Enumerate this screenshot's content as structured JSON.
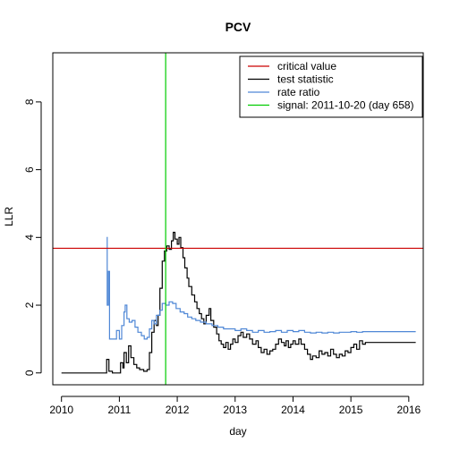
{
  "chart_data": {
    "type": "line",
    "title": "PCV",
    "xlabel": "day",
    "ylabel": "LLR",
    "xlim": [
      2009.85,
      2016.25
    ],
    "ylim": [
      -0.35,
      9.45
    ],
    "x_ticks": [
      2010,
      2011,
      2012,
      2013,
      2014,
      2015,
      2016
    ],
    "x_tick_labels": [
      "2010",
      "2011",
      "2012",
      "2013",
      "2014",
      "2015",
      "2016"
    ],
    "y_ticks": [
      0,
      2,
      4,
      6,
      8
    ],
    "y_tick_labels": [
      "0",
      "2",
      "4",
      "6",
      "8"
    ],
    "legend_position": "top-right",
    "legend": [
      {
        "label": "critical value",
        "color": "#cc0000"
      },
      {
        "label": "test statistic",
        "color": "#000000"
      },
      {
        "label": "rate ratio",
        "color": "#4f87d6"
      },
      {
        "label": "signal: 2011-10-20 (day 658)",
        "color": "#00cc00"
      }
    ],
    "critical_value": 3.68,
    "signal_x": 2011.8,
    "series": [
      {
        "name": "test statistic",
        "color": "#000000",
        "step": true,
        "points": [
          [
            2010.0,
            0
          ],
          [
            2010.77,
            0
          ],
          [
            2010.78,
            0.4
          ],
          [
            2010.82,
            0.05
          ],
          [
            2010.88,
            0
          ],
          [
            2011.02,
            0.3
          ],
          [
            2011.06,
            0.15
          ],
          [
            2011.08,
            0.6
          ],
          [
            2011.12,
            0.3
          ],
          [
            2011.16,
            0.8
          ],
          [
            2011.2,
            0.45
          ],
          [
            2011.25,
            0.25
          ],
          [
            2011.3,
            0.15
          ],
          [
            2011.35,
            0.1
          ],
          [
            2011.42,
            0.05
          ],
          [
            2011.48,
            0.1
          ],
          [
            2011.52,
            0.6
          ],
          [
            2011.56,
            1.2
          ],
          [
            2011.6,
            1.55
          ],
          [
            2011.64,
            1.4
          ],
          [
            2011.67,
            1.7
          ],
          [
            2011.7,
            2.5
          ],
          [
            2011.74,
            3.3
          ],
          [
            2011.78,
            3.6
          ],
          [
            2011.82,
            3.75
          ],
          [
            2011.86,
            3.65
          ],
          [
            2011.9,
            3.9
          ],
          [
            2011.93,
            4.15
          ],
          [
            2011.96,
            3.95
          ],
          [
            2012.0,
            3.8
          ],
          [
            2012.03,
            4.0
          ],
          [
            2012.06,
            3.7
          ],
          [
            2012.1,
            3.4
          ],
          [
            2012.13,
            3.1
          ],
          [
            2012.17,
            2.8
          ],
          [
            2012.2,
            2.55
          ],
          [
            2012.25,
            2.3
          ],
          [
            2012.3,
            2.1
          ],
          [
            2012.34,
            1.9
          ],
          [
            2012.38,
            1.75
          ],
          [
            2012.42,
            1.6
          ],
          [
            2012.46,
            1.45
          ],
          [
            2012.5,
            1.7
          ],
          [
            2012.55,
            1.9
          ],
          [
            2012.58,
            1.55
          ],
          [
            2012.63,
            1.35
          ],
          [
            2012.68,
            1.15
          ],
          [
            2012.72,
            0.95
          ],
          [
            2012.76,
            0.85
          ],
          [
            2012.8,
            0.75
          ],
          [
            2012.84,
            0.9
          ],
          [
            2012.88,
            0.7
          ],
          [
            2012.92,
            0.85
          ],
          [
            2012.96,
            1.0
          ],
          [
            2013.0,
            0.9
          ],
          [
            2013.05,
            1.1
          ],
          [
            2013.1,
            1.2
          ],
          [
            2013.14,
            1.05
          ],
          [
            2013.2,
            1.15
          ],
          [
            2013.25,
            1.0
          ],
          [
            2013.3,
            0.85
          ],
          [
            2013.36,
            0.95
          ],
          [
            2013.4,
            0.75
          ],
          [
            2013.45,
            0.6
          ],
          [
            2013.5,
            0.7
          ],
          [
            2013.55,
            0.55
          ],
          [
            2013.6,
            0.65
          ],
          [
            2013.65,
            0.7
          ],
          [
            2013.7,
            0.85
          ],
          [
            2013.75,
            1.0
          ],
          [
            2013.8,
            0.9
          ],
          [
            2013.85,
            0.8
          ],
          [
            2013.88,
            0.95
          ],
          [
            2013.92,
            0.75
          ],
          [
            2013.96,
            0.85
          ],
          [
            2014.0,
            0.95
          ],
          [
            2014.04,
            0.85
          ],
          [
            2014.1,
            1.0
          ],
          [
            2014.14,
            0.85
          ],
          [
            2014.2,
            0.7
          ],
          [
            2014.25,
            0.55
          ],
          [
            2014.3,
            0.4
          ],
          [
            2014.34,
            0.5
          ],
          [
            2014.4,
            0.45
          ],
          [
            2014.45,
            0.65
          ],
          [
            2014.5,
            0.55
          ],
          [
            2014.55,
            0.6
          ],
          [
            2014.6,
            0.5
          ],
          [
            2014.65,
            0.7
          ],
          [
            2014.7,
            0.55
          ],
          [
            2014.75,
            0.45
          ],
          [
            2014.8,
            0.55
          ],
          [
            2014.85,
            0.5
          ],
          [
            2014.9,
            0.65
          ],
          [
            2014.95,
            0.6
          ],
          [
            2015.0,
            0.75
          ],
          [
            2015.05,
            0.85
          ],
          [
            2015.1,
            0.7
          ],
          [
            2015.15,
            0.95
          ],
          [
            2015.2,
            0.85
          ],
          [
            2015.25,
            0.9
          ],
          [
            2016.12,
            0.9
          ]
        ]
      },
      {
        "name": "rate ratio",
        "color": "#4f87d6",
        "step": true,
        "points": [
          [
            2010.78,
            4.0
          ],
          [
            2010.79,
            2.0
          ],
          [
            2010.81,
            3.0
          ],
          [
            2010.83,
            1.0
          ],
          [
            2010.95,
            1.25
          ],
          [
            2011.0,
            1.0
          ],
          [
            2011.04,
            1.4
          ],
          [
            2011.08,
            1.8
          ],
          [
            2011.1,
            2.0
          ],
          [
            2011.13,
            1.6
          ],
          [
            2011.17,
            1.5
          ],
          [
            2011.22,
            1.55
          ],
          [
            2011.27,
            1.35
          ],
          [
            2011.32,
            1.2
          ],
          [
            2011.38,
            1.1
          ],
          [
            2011.43,
            1.0
          ],
          [
            2011.48,
            1.05
          ],
          [
            2011.52,
            1.3
          ],
          [
            2011.56,
            1.55
          ],
          [
            2011.6,
            1.45
          ],
          [
            2011.64,
            1.7
          ],
          [
            2011.7,
            1.85
          ],
          [
            2011.74,
            2.05
          ],
          [
            2011.8,
            2.0
          ],
          [
            2011.86,
            2.1
          ],
          [
            2011.92,
            2.05
          ],
          [
            2011.98,
            1.9
          ],
          [
            2012.05,
            1.8
          ],
          [
            2012.12,
            1.75
          ],
          [
            2012.18,
            1.65
          ],
          [
            2012.25,
            1.6
          ],
          [
            2012.32,
            1.55
          ],
          [
            2012.4,
            1.5
          ],
          [
            2012.5,
            1.45
          ],
          [
            2012.6,
            1.4
          ],
          [
            2012.7,
            1.35
          ],
          [
            2012.8,
            1.3
          ],
          [
            2012.9,
            1.3
          ],
          [
            2013.0,
            1.25
          ],
          [
            2013.1,
            1.3
          ],
          [
            2013.2,
            1.25
          ],
          [
            2013.3,
            1.2
          ],
          [
            2013.4,
            1.25
          ],
          [
            2013.5,
            1.2
          ],
          [
            2013.6,
            1.22
          ],
          [
            2013.7,
            1.25
          ],
          [
            2013.8,
            1.2
          ],
          [
            2013.9,
            1.25
          ],
          [
            2014.0,
            1.22
          ],
          [
            2014.1,
            1.25
          ],
          [
            2014.2,
            1.2
          ],
          [
            2014.3,
            1.18
          ],
          [
            2014.4,
            1.2
          ],
          [
            2014.5,
            1.18
          ],
          [
            2014.6,
            1.2
          ],
          [
            2014.7,
            1.18
          ],
          [
            2014.8,
            1.2
          ],
          [
            2014.9,
            1.2
          ],
          [
            2015.0,
            1.22
          ],
          [
            2015.1,
            1.2
          ],
          [
            2015.2,
            1.22
          ],
          [
            2016.12,
            1.22
          ]
        ]
      }
    ]
  }
}
